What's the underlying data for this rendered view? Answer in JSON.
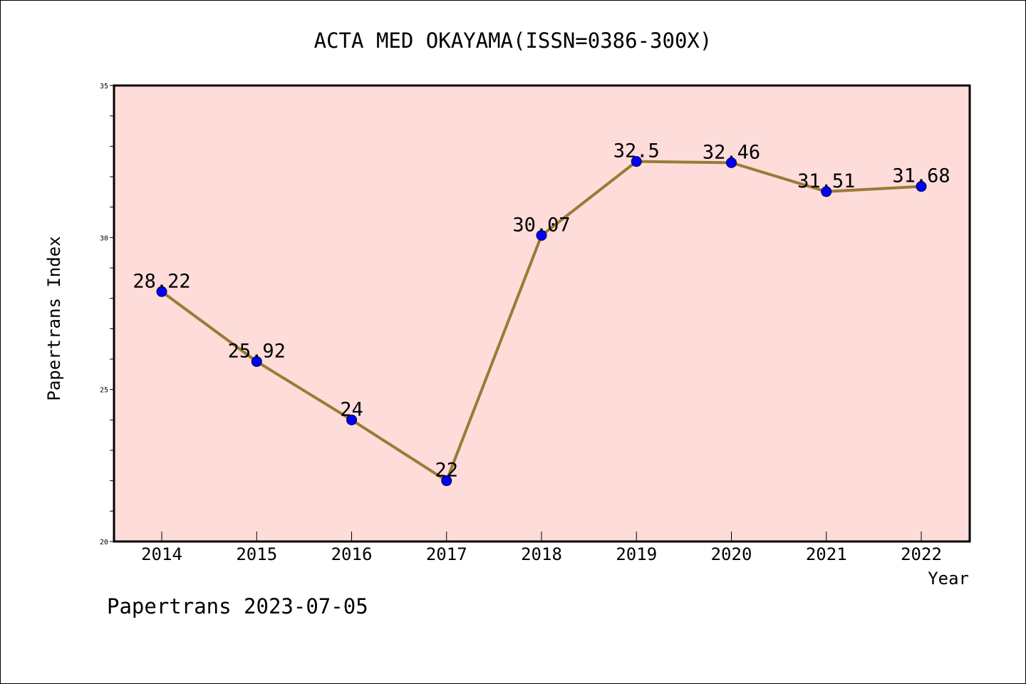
{
  "chart_data": {
    "type": "line",
    "title": "ACTA MED OKAYAMA(ISSN=0386-300X)",
    "xlabel": "Year",
    "ylabel": "Papertrans Index",
    "categories": [
      "2014",
      "2015",
      "2016",
      "2017",
      "2018",
      "2019",
      "2020",
      "2021",
      "2022"
    ],
    "values": [
      28.22,
      25.92,
      24,
      22,
      30.07,
      32.5,
      32.46,
      31.51,
      31.68
    ],
    "data_labels": [
      "28.22",
      "25.92",
      "24",
      "22",
      "30.07",
      "32.5",
      "32.46",
      "31.51",
      "31.68"
    ],
    "ylim": [
      20,
      35
    ],
    "y_ticks": [
      "20",
      "25",
      "30",
      "35"
    ],
    "grid": false,
    "colors": {
      "plot_background": "#fddcda",
      "line": "#9a7b35",
      "marker": "#0000ff"
    }
  },
  "footer": {
    "text": "Papertrans 2023-07-05"
  }
}
